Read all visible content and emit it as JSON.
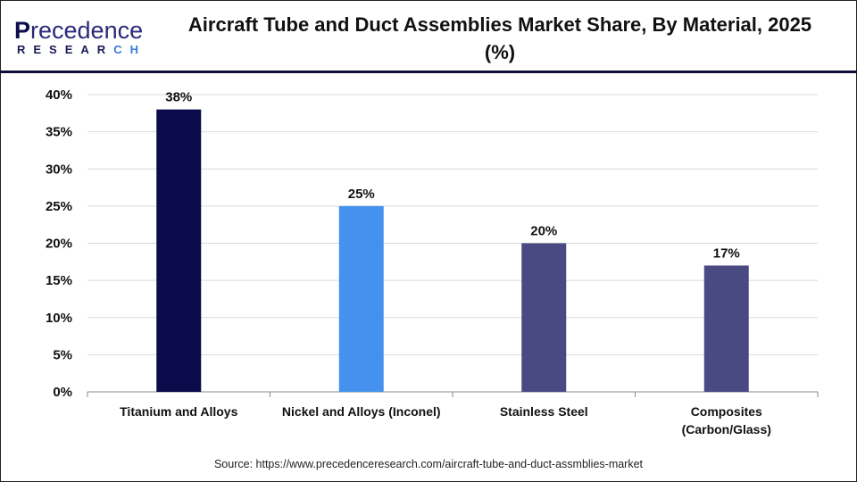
{
  "logo": {
    "line1": "Precedence",
    "line2": "RESEARCH"
  },
  "title": "Aircraft Tube and Duct Assemblies Market Share, By Material, 2025 (%)",
  "source": "Source: https://www.precedenceresearch.com/aircraft-tube-and-duct-assmblies-market",
  "chart_data": {
    "type": "bar",
    "title": "Aircraft Tube and Duct Assemblies Market Share, By Material, 2025 (%)",
    "categories": [
      "Titanium and Alloys",
      "Nickel and Alloys (Inconel)",
      "Stainless Steel",
      "Composites (Carbon/Glass)"
    ],
    "category_lines": [
      [
        "Titanium and Alloys"
      ],
      [
        "Nickel and Alloys (Inconel)"
      ],
      [
        "Stainless Steel"
      ],
      [
        "Composites",
        "(Carbon/Glass)"
      ]
    ],
    "values": [
      38,
      25,
      20,
      17
    ],
    "data_labels": [
      "38%",
      "25%",
      "20%",
      "17%"
    ],
    "colors": [
      "#0b0b4b",
      "#4592ee",
      "#4a4a82",
      "#4a4a82"
    ],
    "ylim": [
      0,
      40
    ],
    "yticks": [
      "0%",
      "5%",
      "10%",
      "15%",
      "20%",
      "25%",
      "30%",
      "35%",
      "40%"
    ],
    "grid": true,
    "xlabel": "",
    "ylabel": ""
  }
}
